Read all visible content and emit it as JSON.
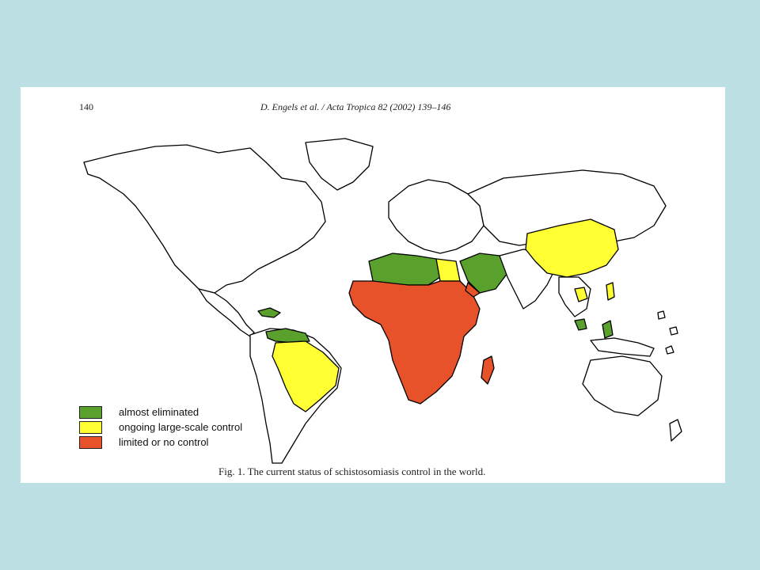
{
  "header": {
    "page_number": "140",
    "citation": "D. Engels et al. / Acta Tropica 82 (2002) 139–146"
  },
  "colors": {
    "almost_eliminated": "#5aa02c",
    "ongoing_large_scale_control": "#ffff33",
    "limited_or_no_control": "#e8522a",
    "land": "#ffffff",
    "background": "#bde0e5"
  },
  "legend": [
    {
      "key": "almost_eliminated",
      "label": "almost eliminated"
    },
    {
      "key": "ongoing_large_scale_control",
      "label": "ongoing large-scale control"
    },
    {
      "key": "limited_or_no_control",
      "label": "limited or no control"
    }
  ],
  "caption": "Fig. 1. The current status of schistosomiasis control in the world.",
  "chart_data": {
    "type": "choropleth-map",
    "categories": [
      "almost eliminated",
      "ongoing large-scale control",
      "limited or no control"
    ],
    "regions": {
      "almost eliminated": [
        "Morocco",
        "Algeria",
        "Tunisia",
        "Libya",
        "Saudi Arabia",
        "Iraq",
        "Syria",
        "Venezuela",
        "Suriname",
        "Guyana",
        "Caribbean islands",
        "Malaysia",
        "Indonesia (Sulawesi)"
      ],
      "ongoing large-scale control": [
        "Egypt",
        "Brazil",
        "China",
        "Philippines",
        "Cambodia / Laos"
      ],
      "limited or no control": [
        "Sub-Saharan Africa",
        "Yemen",
        "Madagascar"
      ]
    }
  }
}
